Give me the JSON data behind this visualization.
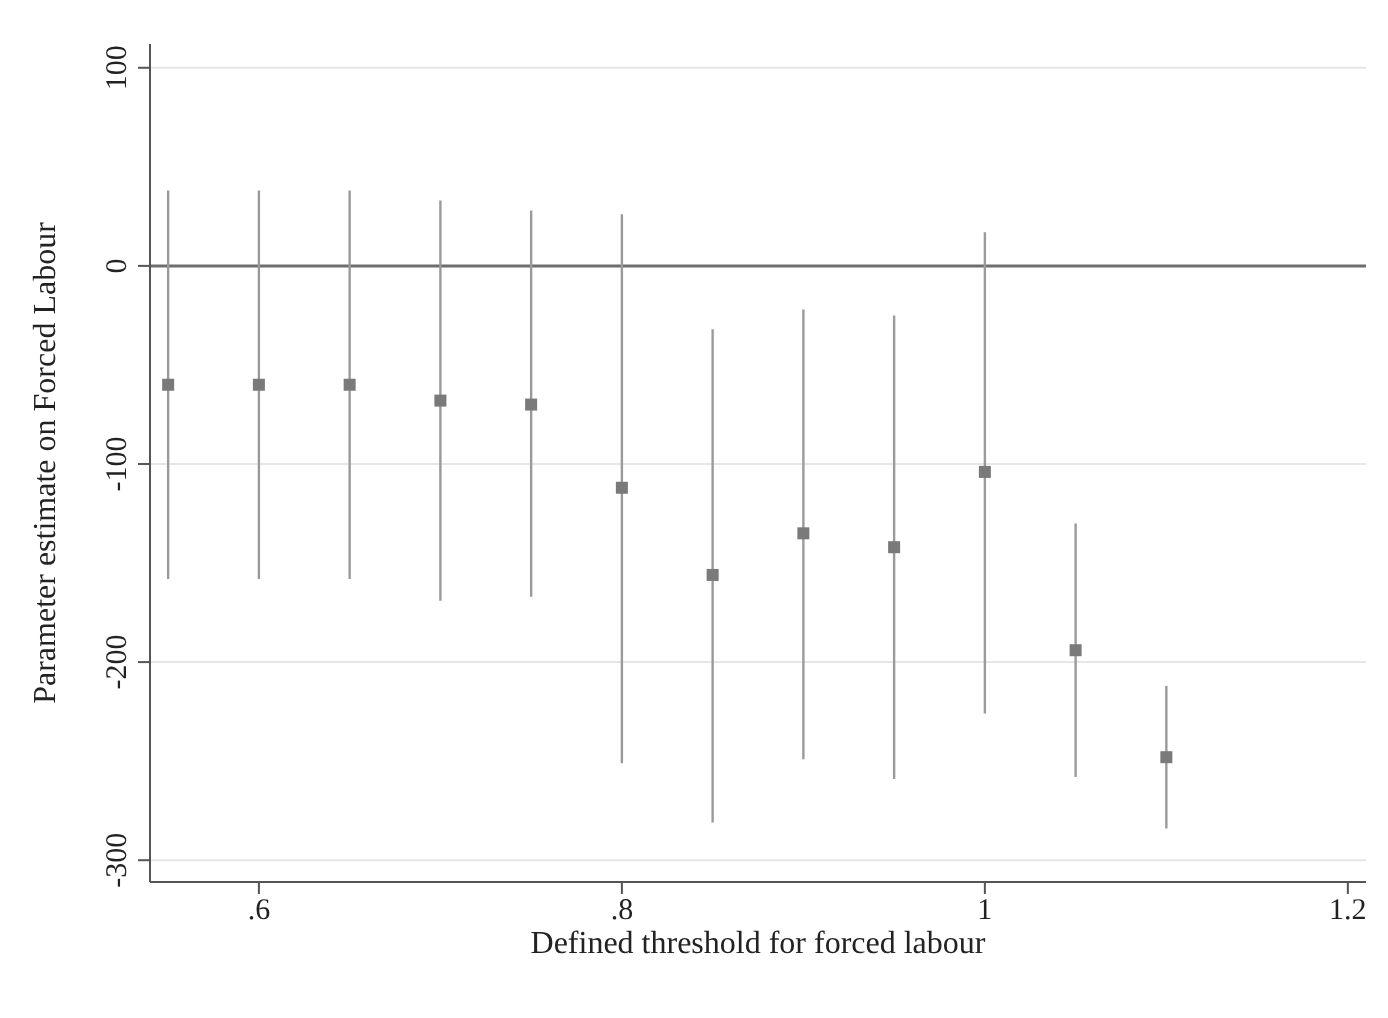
{
  "chart_data": {
    "type": "scatter",
    "xlabel": "Defined threshold for forced labour",
    "ylabel": "Parameter estimate on Forced Labour",
    "x": [
      0.55,
      0.6,
      0.65,
      0.7,
      0.75,
      0.8,
      0.85,
      0.9,
      0.95,
      1.0,
      1.05,
      1.1
    ],
    "series": [
      {
        "color": "#7a7a7a",
        "values": [
          -60,
          -60,
          -60,
          -68,
          -70,
          -112,
          -156,
          -135,
          -142,
          -104,
          -194,
          -248
        ],
        "errors": [
          [
            -158,
            38
          ],
          [
            -158,
            38
          ],
          [
            -158,
            38
          ],
          [
            -169,
            33
          ],
          [
            -167,
            28
          ],
          [
            -251,
            26
          ],
          [
            -281,
            -32
          ],
          [
            -249,
            -22
          ],
          [
            -259,
            -25
          ],
          [
            -226,
            17
          ],
          [
            -258,
            -130
          ],
          [
            -284,
            -212
          ]
        ]
      }
    ],
    "marker": "square",
    "xlim": [
      0.54,
      1.21
    ],
    "xticks": [
      {
        "value": 0.6,
        "label": ".6"
      },
      {
        "value": 0.8,
        "label": ".8"
      },
      1,
      1.2
    ],
    "ylim": [
      -311,
      112
    ],
    "yticks": [
      -300,
      -200,
      -100,
      0,
      100
    ],
    "grid": "y",
    "ref_lines": [
      {
        "axis": "y",
        "value": 0,
        "color": "#6e6e6e"
      }
    ]
  }
}
